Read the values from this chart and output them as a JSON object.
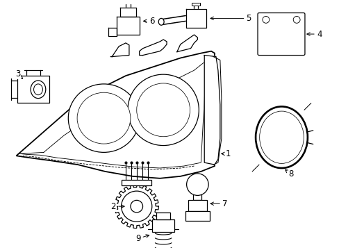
{
  "background_color": "#ffffff",
  "line_color": "#000000",
  "fig_width": 4.89,
  "fig_height": 3.6,
  "dpi": 100
}
